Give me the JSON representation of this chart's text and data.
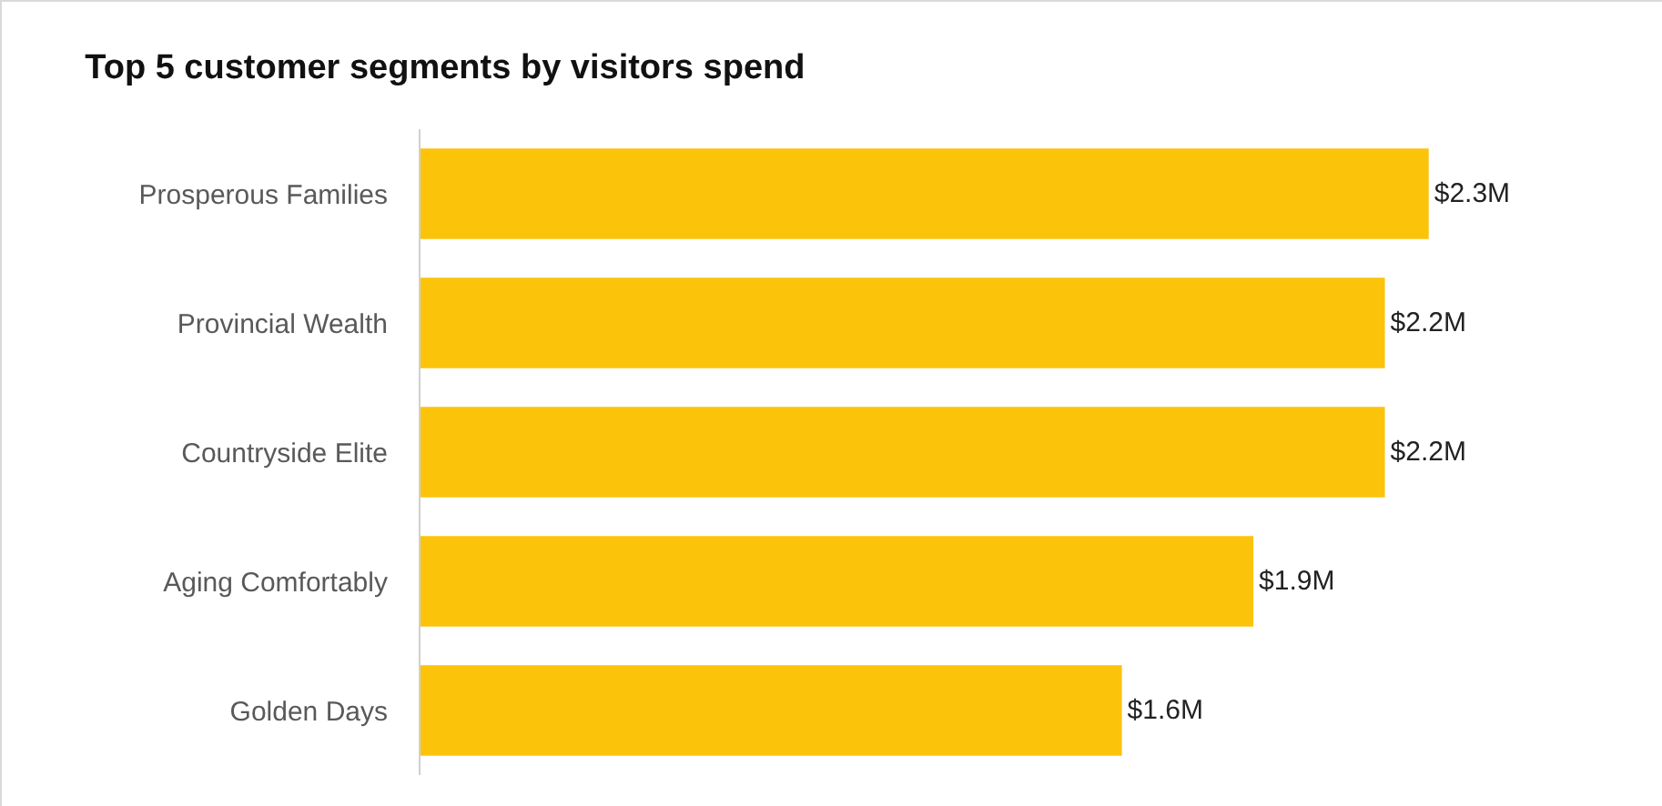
{
  "chart_data": {
    "type": "bar",
    "title": "Top 5 customer segments by visitors spend",
    "orientation": "horizontal",
    "categories": [
      "Prosperous Families",
      "Provincial Wealth",
      "Countryside Elite",
      "Aging Comfortably",
      "Golden Days"
    ],
    "values": [
      2.3,
      2.2,
      2.2,
      1.9,
      1.6
    ],
    "value_labels": [
      "$2.3M",
      "$2.2M",
      "$2.2M",
      "$1.9M",
      "$1.6M"
    ],
    "color": "#fcc30b"
  }
}
